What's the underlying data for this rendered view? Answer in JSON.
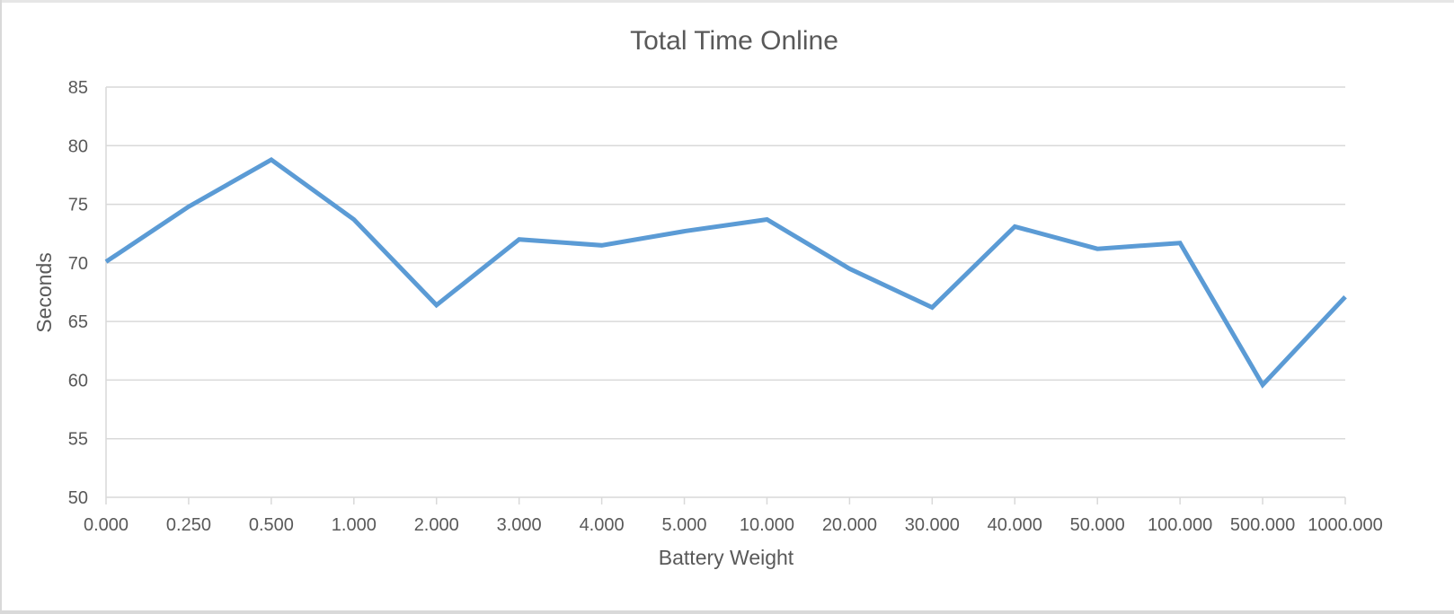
{
  "chart_data": {
    "type": "line",
    "title": "Total Time Online",
    "xlabel": "Battery Weight",
    "ylabel": "Seconds",
    "categories": [
      "0.000",
      "0.250",
      "0.500",
      "1.000",
      "2.000",
      "3.000",
      "4.000",
      "5.000",
      "10.000",
      "20.000",
      "30.000",
      "40.000",
      "50.000",
      "100.000",
      "500.000",
      "1000.000"
    ],
    "series": [
      {
        "values": [
          70.1,
          74.8,
          78.8,
          73.7,
          66.4,
          72.0,
          71.5,
          72.7,
          73.7,
          69.5,
          66.2,
          73.1,
          71.2,
          71.7,
          59.6,
          67.1
        ],
        "color": "#5b9bd5"
      }
    ],
    "ylim": [
      50,
      85
    ],
    "yticks": [
      "50",
      "55",
      "60",
      "65",
      "70",
      "75",
      "80",
      "85"
    ],
    "grid": true,
    "legend": "none"
  }
}
